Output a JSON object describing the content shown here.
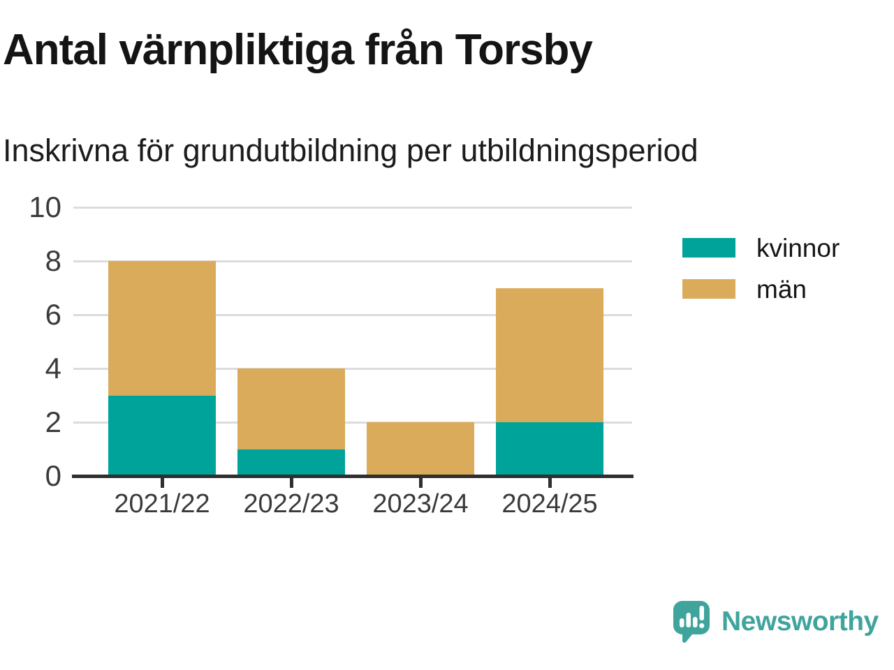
{
  "header": {
    "title": "Antal värnpliktiga från Torsby",
    "subtitle": "Inskrivna för grundutbildning per utbildningsperiod"
  },
  "chart_data": {
    "type": "bar",
    "stacked": true,
    "title": "Antal värnpliktiga från Torsby",
    "subtitle": "Inskrivna för grundutbildning per utbildningsperiod",
    "categories": [
      "2021/22",
      "2022/23",
      "2023/24",
      "2024/25"
    ],
    "series": [
      {
        "name": "kvinnor",
        "color": "#00a39a",
        "values": [
          3,
          1,
          0,
          2
        ]
      },
      {
        "name": "män",
        "color": "#d9ab5b",
        "values": [
          5,
          3,
          2,
          5
        ]
      }
    ],
    "totals": [
      8,
      4,
      2,
      7
    ],
    "ylim": [
      0,
      10
    ],
    "yticks": [
      0,
      2,
      4,
      6,
      8,
      10
    ],
    "grid": "horizontal",
    "legend_position": "right"
  },
  "colors": {
    "kvinnor": "#00a39a",
    "man": "#d9ab5b",
    "grid": "#dcdcdc",
    "axis": "#2f2f2f",
    "brand": "#3fa49c"
  },
  "footer": {
    "brand": "Newsworthy"
  }
}
